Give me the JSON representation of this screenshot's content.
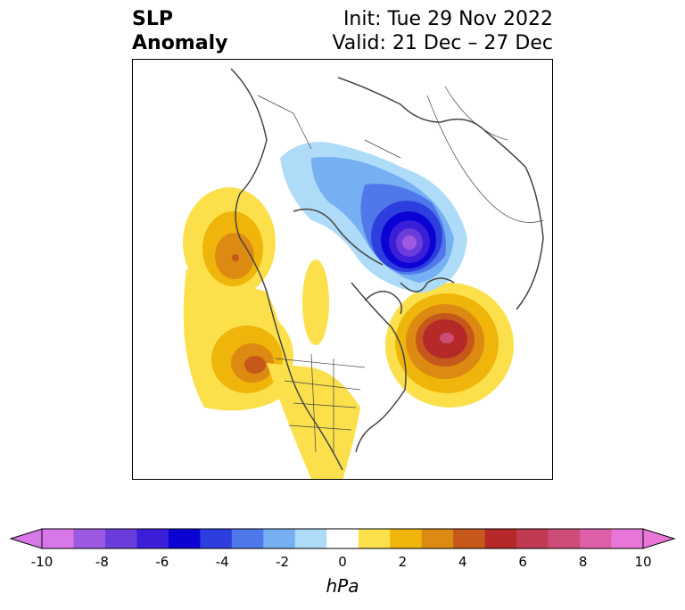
{
  "title": {
    "left_line1": "SLP",
    "left_line2": "Anomaly",
    "right_line1": "Init: Tue 29 Nov 2022",
    "right_line2": "Valid: 21 Dec – 27 Dec"
  },
  "colorbar": {
    "unit": "hPa",
    "tick_labels": [
      "-10",
      "-8",
      "-6",
      "-4",
      "-2",
      "0",
      "2",
      "4",
      "6",
      "8",
      "10"
    ],
    "levels": [
      -10,
      -9,
      -8,
      -7,
      -6,
      -5,
      -4,
      -3,
      -2,
      -1,
      1,
      2,
      3,
      4,
      5,
      6,
      7,
      8,
      9,
      10
    ],
    "colors": [
      "#d877e8",
      "#9e59e2",
      "#6a3cdb",
      "#3b1fd8",
      "#0b02d4",
      "#2c3fde",
      "#4f78ea",
      "#76aff2",
      "#aedcf8",
      "#ffffff",
      "#fbe04c",
      "#f0b50b",
      "#dc8a12",
      "#c6581c",
      "#b52928",
      "#c03a54",
      "#cd4c78",
      "#dc5fa8",
      "#e876d8"
    ]
  },
  "map": {
    "projection": "north-polar-stereographic",
    "anomaly_centers": [
      {
        "name": "aleutian-ridge",
        "value": 5
      },
      {
        "name": "west-us-ridge",
        "value": 5
      },
      {
        "name": "north-atlantic-ridge",
        "value": 7
      },
      {
        "name": "polar-low-kara-sea",
        "value": -10
      }
    ]
  }
}
